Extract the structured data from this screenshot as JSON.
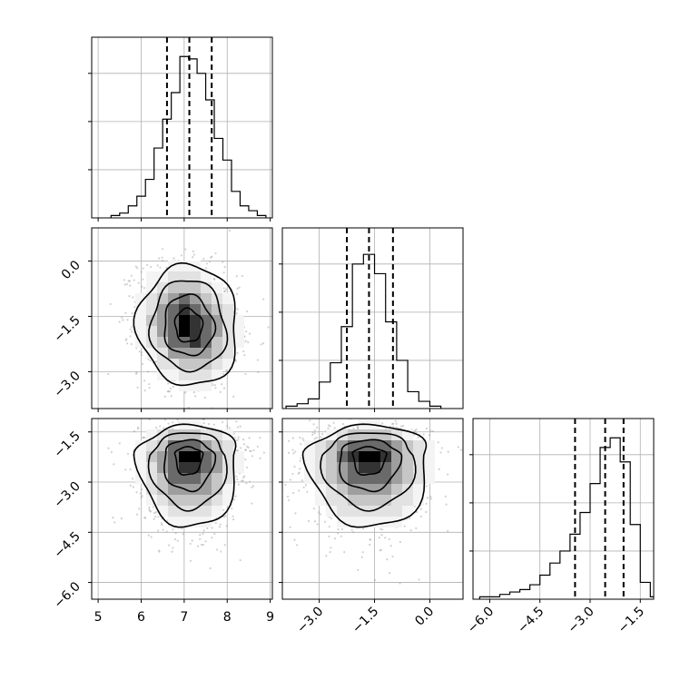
{
  "figure": {
    "background_color": "#ffffff",
    "ink_color": "#000000",
    "grid_color": "#b0b0b0",
    "panel_layout": "lower-triangle 3x3 corner plot"
  },
  "chart_data": [
    {
      "type": "histogram",
      "panel": "row1-col1",
      "variable_index": 0,
      "xlim": [
        4.85,
        9.05
      ],
      "ylim": [
        0,
        0.075
      ],
      "bins": [
        {
          "from": 5.3,
          "to": 5.5,
          "count": 0.001
        },
        {
          "from": 5.5,
          "to": 5.7,
          "count": 0.002
        },
        {
          "from": 5.7,
          "to": 5.9,
          "count": 0.005
        },
        {
          "from": 5.9,
          "to": 6.1,
          "count": 0.009
        },
        {
          "from": 6.1,
          "to": 6.3,
          "count": 0.016
        },
        {
          "from": 6.3,
          "to": 6.5,
          "count": 0.029
        },
        {
          "from": 6.5,
          "to": 6.7,
          "count": 0.041
        },
        {
          "from": 6.7,
          "to": 6.9,
          "count": 0.052
        },
        {
          "from": 6.9,
          "to": 7.1,
          "count": 0.067
        },
        {
          "from": 7.1,
          "to": 7.3,
          "count": 0.066
        },
        {
          "from": 7.3,
          "to": 7.5,
          "count": 0.06
        },
        {
          "from": 7.5,
          "to": 7.7,
          "count": 0.049
        },
        {
          "from": 7.7,
          "to": 7.9,
          "count": 0.033
        },
        {
          "from": 7.9,
          "to": 8.1,
          "count": 0.024
        },
        {
          "from": 8.1,
          "to": 8.3,
          "count": 0.011
        },
        {
          "from": 8.3,
          "to": 8.5,
          "count": 0.005
        },
        {
          "from": 8.5,
          "to": 8.7,
          "count": 0.003
        },
        {
          "from": 8.7,
          "to": 8.9,
          "count": 0.001
        }
      ],
      "quantile_lines": [
        6.6,
        7.12,
        7.64
      ],
      "y_ticks": [
        0.02,
        0.04,
        0.06
      ],
      "y_ticklabels": [
        "",
        "",
        ""
      ],
      "x_ticks": [
        5,
        6,
        7,
        8,
        9
      ],
      "x_ticklabels": [
        "",
        "",
        "",
        "",
        ""
      ],
      "grid": true
    },
    {
      "type": "scatter-density",
      "panel": "row2-col1",
      "variables": [
        0,
        1
      ],
      "xlim": [
        4.85,
        9.05
      ],
      "ylim": [
        -4.0,
        0.9
      ],
      "center": [
        7.1,
        -1.75
      ],
      "sd": [
        0.58,
        0.82
      ],
      "correlation": -0.15,
      "contour_levels": [
        "1 sigma",
        "1.5 sigma",
        "2 sigma"
      ],
      "x_ticks": [
        5,
        6,
        7,
        8,
        9
      ],
      "x_ticklabels": [
        "",
        "",
        "",
        "",
        ""
      ],
      "y_ticks": [
        0.0,
        -1.5,
        -3.0
      ],
      "y_ticklabels": [
        "0.0",
        "−1.5",
        "−3.0"
      ],
      "grid": true
    },
    {
      "type": "histogram",
      "panel": "row2-col2",
      "variable_index": 1,
      "xlim": [
        -4.0,
        0.9
      ],
      "ylim": [
        0,
        0.075
      ],
      "bins": [
        {
          "from": -3.9,
          "to": -3.6,
          "count": 0.001
        },
        {
          "from": -3.6,
          "to": -3.3,
          "count": 0.002
        },
        {
          "from": -3.3,
          "to": -3.0,
          "count": 0.004
        },
        {
          "from": -3.0,
          "to": -2.7,
          "count": 0.011
        },
        {
          "from": -2.7,
          "to": -2.4,
          "count": 0.019
        },
        {
          "from": -2.4,
          "to": -2.1,
          "count": 0.034
        },
        {
          "from": -2.1,
          "to": -1.8,
          "count": 0.06
        },
        {
          "from": -1.8,
          "to": -1.5,
          "count": 0.064
        },
        {
          "from": -1.5,
          "to": -1.2,
          "count": 0.056
        },
        {
          "from": -1.2,
          "to": -0.9,
          "count": 0.036
        },
        {
          "from": -0.9,
          "to": -0.6,
          "count": 0.02
        },
        {
          "from": -0.6,
          "to": -0.3,
          "count": 0.007
        },
        {
          "from": -0.3,
          "to": 0.0,
          "count": 0.003
        },
        {
          "from": 0.0,
          "to": 0.3,
          "count": 0.001
        }
      ],
      "quantile_lines": [
        -2.25,
        -1.65,
        -1.0
      ],
      "y_ticks": [
        0.02,
        0.04,
        0.06
      ],
      "y_ticklabels": [
        "",
        "",
        ""
      ],
      "x_ticks": [
        -3.0,
        -1.5,
        0.0
      ],
      "x_ticklabels": [
        "",
        "",
        ""
      ],
      "grid": true
    },
    {
      "type": "scatter-density",
      "panel": "row3-col1",
      "variables": [
        0,
        2
      ],
      "xlim": [
        4.85,
        9.05
      ],
      "ylim": [
        -6.5,
        -1.1
      ],
      "center": [
        7.1,
        -2.2
      ],
      "sd": [
        0.58,
        0.75
      ],
      "skew": "tail toward negative y",
      "contour_levels": [
        "1 sigma",
        "1.5 sigma",
        "2 sigma"
      ],
      "x_ticks": [
        5,
        6,
        7,
        8,
        9
      ],
      "x_ticklabels": [
        "5",
        "6",
        "7",
        "8",
        "9"
      ],
      "y_ticks": [
        -1.5,
        -3.0,
        -4.5,
        -6.0
      ],
      "y_ticklabels": [
        "−1.5",
        "−3.0",
        "−4.5",
        "−6.0"
      ],
      "grid": true
    },
    {
      "type": "scatter-density",
      "panel": "row3-col2",
      "variables": [
        1,
        2
      ],
      "xlim": [
        -4.0,
        0.9
      ],
      "ylim": [
        -6.5,
        -1.1
      ],
      "center": [
        -1.65,
        -2.2
      ],
      "sd": [
        0.82,
        0.75
      ],
      "skew": "tail toward negative y",
      "contour_levels": [
        "1 sigma",
        "1.5 sigma",
        "2 sigma"
      ],
      "x_ticks": [
        -3.0,
        -1.5,
        0.0
      ],
      "x_ticklabels": [
        "−3.0",
        "−1.5",
        "0.0"
      ],
      "y_ticks": [
        -1.5,
        -3.0,
        -4.5,
        -6.0
      ],
      "y_ticklabels": [
        "",
        "",
        "",
        ""
      ],
      "grid": true
    },
    {
      "type": "histogram",
      "panel": "row3-col3",
      "variable_index": 2,
      "xlim": [
        -6.5,
        -1.1
      ],
      "ylim": [
        0,
        0.075
      ],
      "bins": [
        {
          "from": -6.3,
          "to": -6.0,
          "count": 0.001
        },
        {
          "from": -6.0,
          "to": -5.7,
          "count": 0.001
        },
        {
          "from": -5.7,
          "to": -5.4,
          "count": 0.002
        },
        {
          "from": -5.4,
          "to": -5.1,
          "count": 0.003
        },
        {
          "from": -5.1,
          "to": -4.8,
          "count": 0.004
        },
        {
          "from": -4.8,
          "to": -4.5,
          "count": 0.006
        },
        {
          "from": -4.5,
          "to": -4.2,
          "count": 0.01
        },
        {
          "from": -4.2,
          "to": -3.9,
          "count": 0.015
        },
        {
          "from": -3.9,
          "to": -3.6,
          "count": 0.02
        },
        {
          "from": -3.6,
          "to": -3.3,
          "count": 0.027
        },
        {
          "from": -3.3,
          "to": -3.0,
          "count": 0.036
        },
        {
          "from": -3.0,
          "to": -2.7,
          "count": 0.048
        },
        {
          "from": -2.7,
          "to": -2.4,
          "count": 0.063
        },
        {
          "from": -2.4,
          "to": -2.1,
          "count": 0.067
        },
        {
          "from": -2.1,
          "to": -1.8,
          "count": 0.057
        },
        {
          "from": -1.8,
          "to": -1.5,
          "count": 0.031
        },
        {
          "from": -1.5,
          "to": -1.2,
          "count": 0.007
        },
        {
          "from": -1.2,
          "to": -0.9,
          "count": 0.001
        }
      ],
      "quantile_lines": [
        -3.45,
        -2.55,
        -2.0
      ],
      "y_ticks": [
        0.02,
        0.04,
        0.06
      ],
      "y_ticklabels": [
        "",
        "",
        ""
      ],
      "x_ticks": [
        -6.0,
        -4.5,
        -3.0,
        -1.5
      ],
      "x_ticklabels": [
        "−6.0",
        "−4.5",
        "−3.0",
        "−1.5"
      ],
      "grid": true
    }
  ]
}
